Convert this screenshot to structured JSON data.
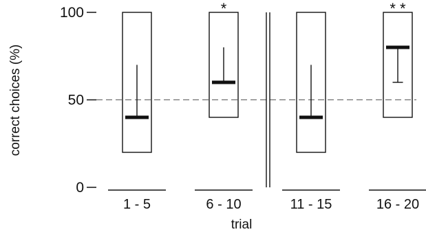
{
  "chart_data": {
    "type": "box",
    "title": "",
    "xlabel": "trial",
    "ylabel": "correct choices (%)",
    "ylim": [
      0,
      100
    ],
    "yticks": [
      0,
      50,
      100
    ],
    "reference_line": 50,
    "categories": [
      "1 - 5",
      "6 - 10",
      "11 - 15",
      "16 - 20"
    ],
    "boxes": [
      {
        "category": "1 - 5",
        "min": 20,
        "max": 100,
        "median": 40,
        "whisker": 70,
        "significance": ""
      },
      {
        "category": "6 - 10",
        "min": 40,
        "max": 100,
        "median": 60,
        "whisker": 80,
        "significance": "*"
      },
      {
        "category": "11 - 15",
        "min": 20,
        "max": 100,
        "median": 40,
        "whisker": 70,
        "significance": ""
      },
      {
        "category": "16 - 20",
        "min": 40,
        "max": 100,
        "median": 80,
        "whisker": 60,
        "significance": "* *"
      }
    ],
    "separator_after_category": 2,
    "grid": false,
    "colors": {
      "ink": "#111111",
      "reference": "#555555",
      "background": "#ffffff"
    }
  }
}
